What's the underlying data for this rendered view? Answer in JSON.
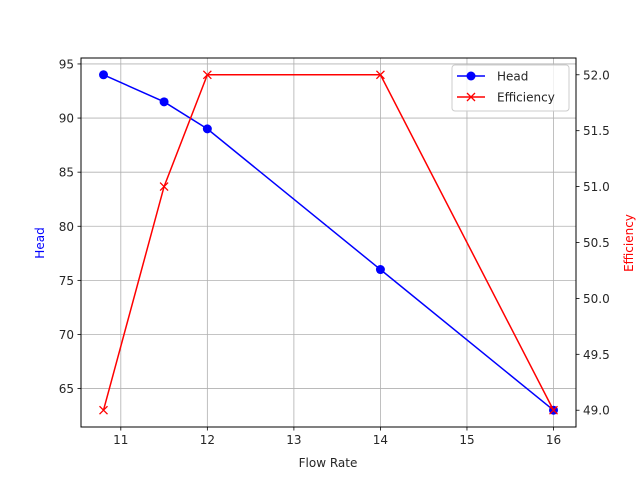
{
  "chart_data": {
    "type": "line",
    "title": "",
    "xlabel": "Flow Rate",
    "ylabel": "Head",
    "ylabel_right": "Efficiency",
    "x": [
      10.8,
      11.5,
      12,
      14,
      16
    ],
    "series": [
      {
        "name": "Head",
        "axis": "left",
        "color": "#0000ff",
        "marker": "o",
        "values": [
          94,
          91.5,
          89,
          76,
          63
        ]
      },
      {
        "name": "Efficiency",
        "axis": "right",
        "color": "#ff0000",
        "marker": "x",
        "values": [
          49.0,
          51.0,
          52.0,
          52.0,
          49.0
        ]
      }
    ],
    "xlim": [
      10.54,
      16.26
    ],
    "ylim": [
      61.45,
      95.55
    ],
    "ylim_right": [
      48.85,
      52.15
    ],
    "xticks": [
      11,
      12,
      13,
      14,
      15,
      16
    ],
    "yticks": [
      65,
      70,
      75,
      80,
      85,
      90,
      95
    ],
    "yticks_right": [
      "49.0",
      "49.5",
      "50.0",
      "50.5",
      "51.0",
      "51.5",
      "52.0"
    ],
    "grid": true,
    "legend_position": "upper right"
  },
  "legend": {
    "items": [
      {
        "label": "Head"
      },
      {
        "label": "Efficiency"
      }
    ]
  },
  "axes": {
    "xlabel": "Flow Rate",
    "ylabel_left": "Head",
    "ylabel_right": "Efficiency",
    "left_color": "#0000ff",
    "right_color": "#ff0000"
  }
}
